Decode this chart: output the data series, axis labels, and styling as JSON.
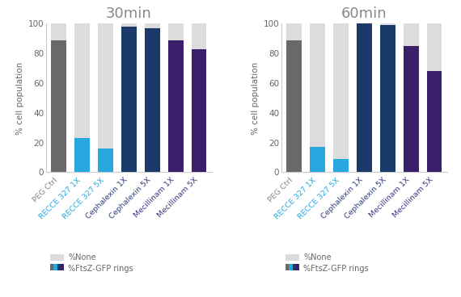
{
  "title_left": "30min",
  "title_right": "60min",
  "ylabel": "% cell population",
  "categories": [
    "PEG Ctrl",
    "RECCE 327 1X",
    "RECCE 327 5X",
    "Cephalexin 1X",
    "Cephalexin 5X",
    "Mecillinam 1X",
    "Mecillinam 5X"
  ],
  "left_ftsz": [
    89,
    23,
    16,
    98,
    97,
    89,
    83
  ],
  "left_none": [
    11,
    77,
    84,
    2,
    3,
    11,
    17
  ],
  "right_ftsz": [
    89,
    17,
    9,
    100,
    99,
    85,
    68
  ],
  "right_none": [
    11,
    83,
    91,
    0,
    1,
    15,
    32
  ],
  "bar_colors": [
    "#696969",
    "#29A8E0",
    "#29A8E0",
    "#1B3A6B",
    "#1B3A6B",
    "#3B1F6B",
    "#3B1F6B"
  ],
  "none_color": "#DCDCDC",
  "title_color": "#888888",
  "ylabel_color": "#666666",
  "tick_label_colors": [
    "#888888",
    "#29A8E0",
    "#29A8E0",
    "#2C3E7A",
    "#2C3E7A",
    "#4B3082",
    "#4B3082"
  ],
  "ylim": [
    0,
    100
  ],
  "yticks": [
    0,
    20,
    40,
    60,
    80,
    100
  ],
  "legend_none_color": "#DCDCDC",
  "legend_colors": [
    "#696969",
    "#29A8E0",
    "#1B3A6B",
    "#3B1F6B"
  ],
  "background_color": "#FFFFFF"
}
